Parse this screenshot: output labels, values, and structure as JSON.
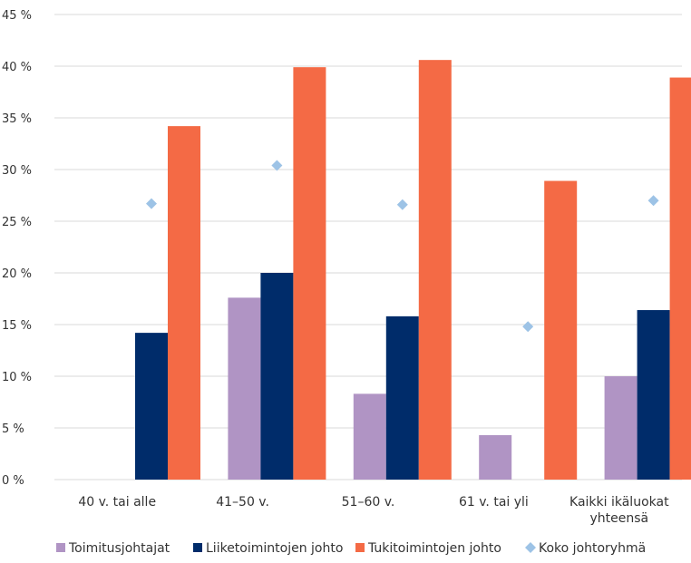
{
  "chart_data": {
    "type": "bar",
    "categories": [
      "40 v. tai alle",
      "41–50 v.",
      "51–60 v.",
      "61 v. tai yli",
      "Kaikki ikäluokat yhteensä"
    ],
    "category_lines": [
      [
        "40 v. tai alle"
      ],
      [
        "41–50 v."
      ],
      [
        "51–60 v."
      ],
      [
        "61 v. tai yli"
      ],
      [
        "Kaikki ikäluokat",
        "yhteensä"
      ]
    ],
    "series": [
      {
        "name": "Toimitusjohtajat",
        "kind": "bar",
        "color": "#b094c4",
        "values": [
          0,
          17.6,
          8.3,
          4.3,
          10.0
        ]
      },
      {
        "name": "Liiketoimintojen johto",
        "kind": "bar",
        "color": "#002c6a",
        "values": [
          14.2,
          20.0,
          15.8,
          0,
          16.4
        ]
      },
      {
        "name": "Tukitoimintojen johto",
        "kind": "bar",
        "color": "#f46a45",
        "values": [
          34.2,
          39.9,
          40.6,
          28.9,
          38.9
        ]
      },
      {
        "name": "Koko johtoryhmä",
        "kind": "marker",
        "marker": "diamond",
        "color": "#9dc3e6",
        "values": [
          26.7,
          30.4,
          26.6,
          14.8,
          27.0
        ]
      }
    ],
    "yticks": [
      "0 %",
      "5 %",
      "10 %",
      "15 %",
      "20 %",
      "25 %",
      "30 %",
      "35 %",
      "40 %",
      "45 %"
    ],
    "ylim": [
      0,
      45
    ],
    "grid": true,
    "legend_position": "bottom",
    "title": "",
    "xlabel": "",
    "ylabel": ""
  }
}
